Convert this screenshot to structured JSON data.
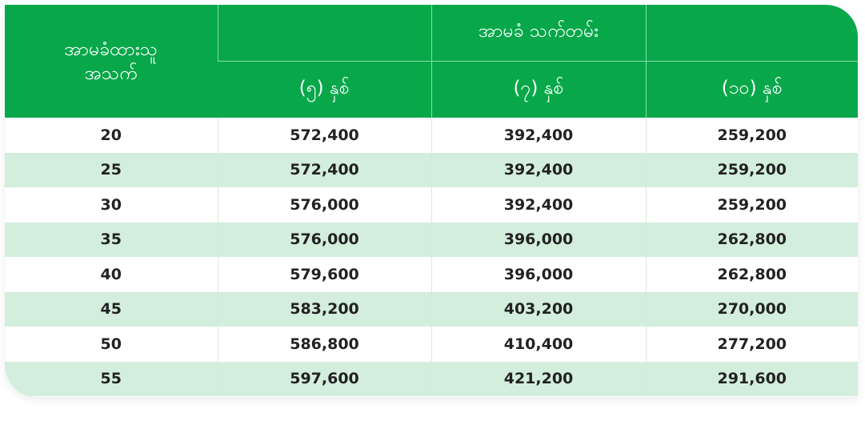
{
  "header": {
    "age_col": [
      "အာမခံထားသူ",
      "အသက်"
    ],
    "term_group": "အာမခံ သက်တမ်း",
    "terms": [
      "(၅) နှစ်",
      "(၇) နှစ်",
      "(၁၀) နှစ်"
    ]
  },
  "rows": [
    {
      "age": "20",
      "v5": "572,400",
      "v7": "392,400",
      "v10": "259,200"
    },
    {
      "age": "25",
      "v5": "572,400",
      "v7": "392,400",
      "v10": "259,200"
    },
    {
      "age": "30",
      "v5": "576,000",
      "v7": "392,400",
      "v10": "259,200"
    },
    {
      "age": "35",
      "v5": "576,000",
      "v7": "396,000",
      "v10": "262,800"
    },
    {
      "age": "40",
      "v5": "579,600",
      "v7": "396,000",
      "v10": "262,800"
    },
    {
      "age": "45",
      "v5": "583,200",
      "v7": "403,200",
      "v10": "270,000"
    },
    {
      "age": "50",
      "v5": "586,800",
      "v7": "410,400",
      "v10": "277,200"
    },
    {
      "age": "55",
      "v5": "597,600",
      "v7": "421,200",
      "v10": "291,600"
    }
  ],
  "colors": {
    "header_green": "#08a84a",
    "stripe": "#d4eedd"
  }
}
